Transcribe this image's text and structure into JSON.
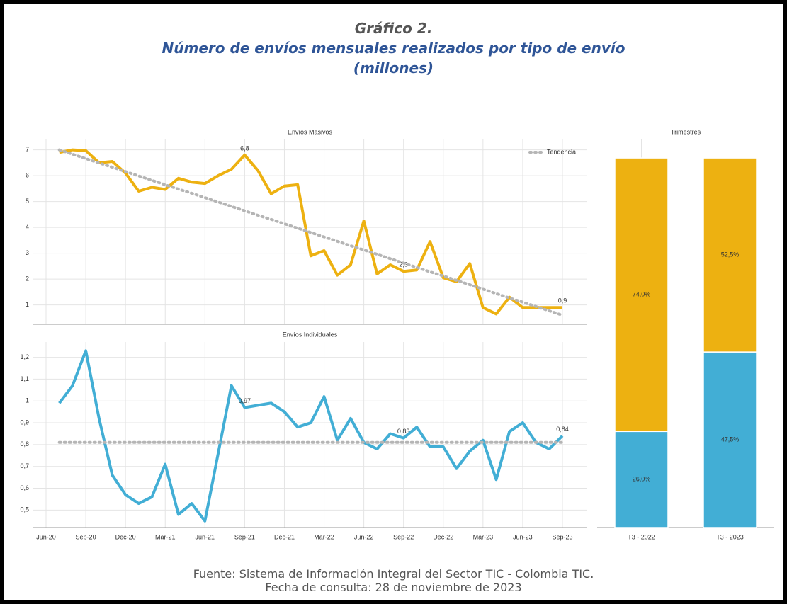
{
  "heading": "Gráfico 2.",
  "title_lines": [
    "Número de envíos mensuales realizados por tipo de envío",
    "(millones)"
  ],
  "source": "Fuente: Sistema de Información Integral del Sector TIC - Colombia TIC.",
  "date_note": "Fecha de consulta: 28 de noviembre de 2023",
  "chart_data": [
    {
      "type": "line",
      "title": "Envíos Masivos",
      "ylim": [
        0.25,
        7.4
      ],
      "yticks": [
        1,
        2,
        3,
        4,
        5,
        6,
        7
      ],
      "grid": true,
      "legend": "upper right",
      "series": [
        {
          "color": "#edb111",
          "style": "solid",
          "values": [
            null,
            6.9,
            7.0,
            6.97,
            6.5,
            6.55,
            6.1,
            5.4,
            5.55,
            5.47,
            5.9,
            5.75,
            5.7,
            6.0,
            6.25,
            6.8,
            6.2,
            5.3,
            5.6,
            5.65,
            2.9,
            3.1,
            2.15,
            2.55,
            4.25,
            2.2,
            2.55,
            2.3,
            2.35,
            3.45,
            2.05,
            1.9,
            2.6,
            0.9,
            0.65,
            1.3,
            0.9,
            0.9,
            0.9,
            0.9
          ],
          "value_labels": [
            null,
            null,
            null,
            null,
            null,
            null,
            null,
            null,
            null,
            null,
            null,
            null,
            null,
            null,
            null,
            "6,8",
            null,
            null,
            null,
            null,
            null,
            null,
            null,
            null,
            null,
            null,
            null,
            "2,3",
            null,
            null,
            null,
            null,
            null,
            null,
            null,
            null,
            null,
            null,
            null,
            "0,9"
          ]
        },
        {
          "name": "Tendencia",
          "color": "#b5b5b5",
          "style": "dotted",
          "values": [
            null,
            7.0,
            6.83,
            6.66,
            6.49,
            6.33,
            6.16,
            5.99,
            5.82,
            5.65,
            5.48,
            5.32,
            5.15,
            4.98,
            4.81,
            4.64,
            4.47,
            4.31,
            4.14,
            3.97,
            3.8,
            3.63,
            3.46,
            3.29,
            3.13,
            2.96,
            2.79,
            2.62,
            2.45,
            2.28,
            2.12,
            1.95,
            1.78,
            1.61,
            1.44,
            1.27,
            1.11,
            0.94,
            0.77,
            0.6
          ]
        }
      ]
    },
    {
      "type": "line",
      "title": "Envíos Individuales",
      "ylim": [
        0.42,
        1.27
      ],
      "grid": true,
      "yticks": [
        {
          "value": 0.5,
          "label": "0,5"
        },
        {
          "value": 0.6,
          "label": "0,6"
        },
        {
          "value": 0.7,
          "label": "0,7"
        },
        {
          "value": 0.8,
          "label": "0,8"
        },
        {
          "value": 0.9,
          "label": "0,9"
        },
        1,
        {
          "value": 1.1,
          "label": "1,1"
        },
        {
          "value": 1.2,
          "label": "1,2"
        }
      ],
      "categories": [
        "Jun-20",
        null,
        null,
        "Sep-20",
        null,
        null,
        "Dec-20",
        null,
        null,
        "Mar-21",
        null,
        null,
        "Jun-21",
        null,
        null,
        "Sep-21",
        null,
        null,
        "Dec-21",
        null,
        null,
        "Mar-22",
        null,
        null,
        "Jun-22",
        null,
        null,
        "Sep-22",
        null,
        null,
        "Dec-22",
        null,
        null,
        "Mar-23",
        null,
        null,
        "Jun-23",
        null,
        null,
        "Sep-23"
      ],
      "series": [
        {
          "color": "#42aed5",
          "style": "solid",
          "values": [
            null,
            0.99,
            1.07,
            1.23,
            0.92,
            0.66,
            0.57,
            0.53,
            0.56,
            0.71,
            0.48,
            0.53,
            0.45,
            0.76,
            1.07,
            0.97,
            0.98,
            0.99,
            0.95,
            0.88,
            0.9,
            1.02,
            0.82,
            0.92,
            0.81,
            0.78,
            0.85,
            0.83,
            0.88,
            0.79,
            0.79,
            0.69,
            0.77,
            0.82,
            0.64,
            0.86,
            0.9,
            0.81,
            0.78,
            0.84
          ],
          "value_labels": [
            null,
            null,
            null,
            null,
            null,
            null,
            null,
            null,
            null,
            null,
            null,
            null,
            null,
            null,
            null,
            "0,97",
            null,
            null,
            null,
            null,
            null,
            null,
            null,
            null,
            null,
            null,
            null,
            "0,83",
            null,
            null,
            null,
            null,
            null,
            null,
            null,
            null,
            null,
            null,
            null,
            "0,84"
          ]
        },
        {
          "color": "#b5b5b5",
          "style": "dotted",
          "values": [
            null,
            0.81,
            0.81,
            0.81,
            0.81,
            0.81,
            0.81,
            0.81,
            0.81,
            0.81,
            0.81,
            0.81,
            0.81,
            0.81,
            0.81,
            0.81,
            0.81,
            0.81,
            0.81,
            0.81,
            0.81,
            0.81,
            0.81,
            0.81,
            0.81,
            0.81,
            0.81,
            0.81,
            0.81,
            0.81,
            0.81,
            0.81,
            0.81,
            0.81,
            0.81,
            0.81,
            0.81,
            0.81,
            0.81,
            0.81
          ]
        }
      ]
    },
    {
      "type": "bar",
      "stacked": true,
      "title": "Trimestres",
      "ylim": [
        0,
        105
      ],
      "categories": [
        "T3 - 2022",
        "T3 - 2023"
      ],
      "series": [
        {
          "color": "#42aed5",
          "values": [
            26.0,
            47.5
          ],
          "value_labels": [
            "26,0%",
            "47,5%"
          ]
        },
        {
          "color": "#edb111",
          "values": [
            74.0,
            52.5
          ],
          "value_labels": [
            "74,0%",
            "52,5%"
          ]
        }
      ]
    }
  ]
}
